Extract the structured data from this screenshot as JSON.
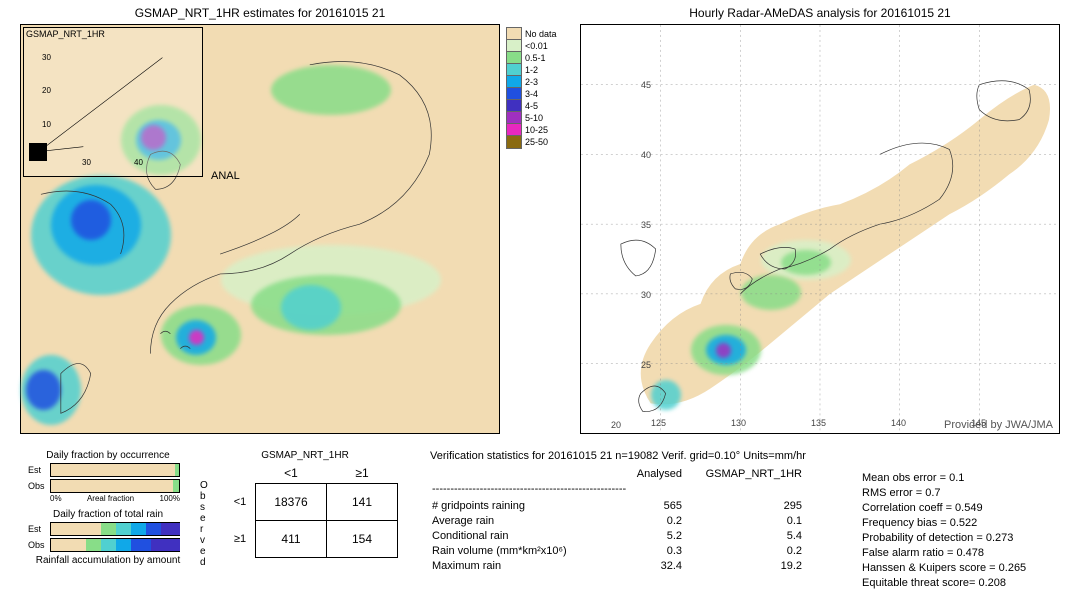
{
  "left_map": {
    "title": "GSMAP_NRT_1HR estimates for 20161015 21",
    "inset_label": "GSMAP_NRT_1HR",
    "anal_label": "ANAL",
    "lat_ticks": [
      "30",
      "20",
      "10",
      "30",
      "40"
    ],
    "colors": {
      "land_no_data": "#f2dcb3",
      "white": "#ffffff"
    }
  },
  "right_map": {
    "title": "Hourly Radar-AMeDAS analysis for 20161015 21",
    "lon_ticks": [
      "125",
      "130",
      "135",
      "140",
      "145"
    ],
    "lat_ticks": [
      "45",
      "40",
      "35",
      "30",
      "25",
      "20"
    ],
    "provided": "Provided by JWA/JMA"
  },
  "legend": {
    "items": [
      {
        "label": "No data",
        "color": "#f2dcb3"
      },
      {
        "label": "<0.01",
        "color": "#d8f0c8"
      },
      {
        "label": "0.5-1",
        "color": "#88dd88"
      },
      {
        "label": "1-2",
        "color": "#50d0d0"
      },
      {
        "label": "2-3",
        "color": "#10a8e8"
      },
      {
        "label": "3-4",
        "color": "#2050e0"
      },
      {
        "label": "4-5",
        "color": "#4030c0"
      },
      {
        "label": "5-10",
        "color": "#a030c0"
      },
      {
        "label": "10-25",
        "color": "#e828c0"
      },
      {
        "label": "25-50",
        "color": "#8a6a10"
      }
    ]
  },
  "precip": {
    "sea_colors": [
      "#d8f0c8",
      "#88dd88",
      "#50d0d0",
      "#10a8e8",
      "#2050e0",
      "#4030c0",
      "#a030c0",
      "#e828c0"
    ]
  },
  "bottom": {
    "frac_occ_title": "Daily fraction by occurrence",
    "frac_rain_title": "Daily fraction of total rain",
    "accum_title": "Rainfall accumulation by amount",
    "axis_left": "0%",
    "axis_mid": "Areal fraction",
    "axis_right": "100%",
    "est_label": "Est",
    "obs_label": "Obs",
    "observed_label": "Observed",
    "ct_title": "GSMAP_NRT_1HR",
    "ct_col1": "<1",
    "ct_col2": "≥1",
    "ct_row1": "<1",
    "ct_row2": "≥1",
    "ct": [
      [
        "18376",
        "141"
      ],
      [
        "411",
        "154"
      ]
    ]
  },
  "stats": {
    "header": "Verification statistics for 20161015 21   n=19082   Verif. grid=0.10°   Units=mm/hr",
    "col_analysed": "Analysed",
    "col_model": "GSMAP_NRT_1HR",
    "rows": [
      {
        "label": "# gridpoints raining",
        "a": "565",
        "b": "295"
      },
      {
        "label": "Average rain",
        "a": "0.2",
        "b": "0.1"
      },
      {
        "label": "Conditional rain",
        "a": "5.2",
        "b": "5.4"
      },
      {
        "label": "Rain volume (mm*km²x10⁶)",
        "a": "0.3",
        "b": "0.2"
      },
      {
        "label": "Maximum rain",
        "a": "32.4",
        "b": "19.2"
      }
    ],
    "right": [
      "Mean obs error = 0.1",
      "RMS error = 0.7",
      "Correlation coeff = 0.549",
      "Frequency bias = 0.522",
      "Probability of detection = 0.273",
      "False alarm ratio = 0.478",
      "Hanssen & Kuipers score = 0.265",
      "Equitable threat score= 0.208"
    ],
    "dash": "-----------------------------------------------------"
  }
}
